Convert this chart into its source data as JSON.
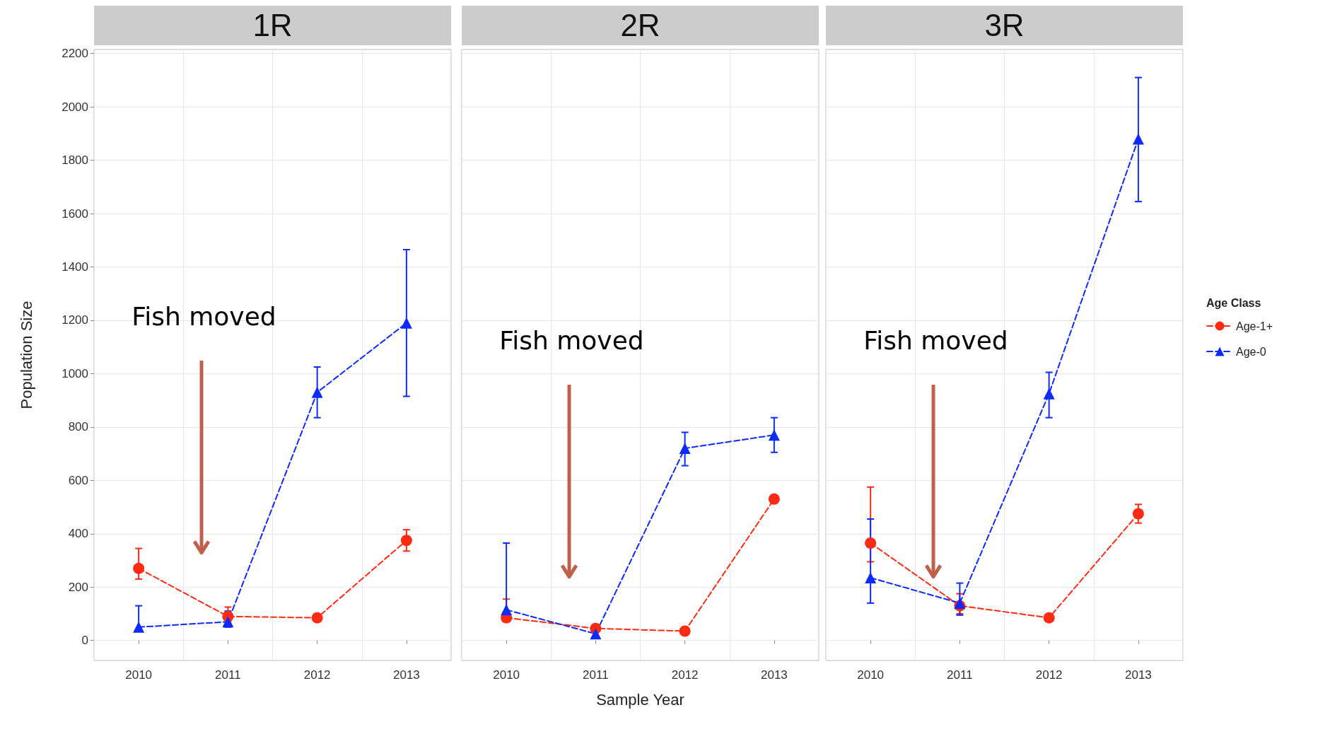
{
  "chart_data": [
    {
      "type": "line",
      "title": "1R",
      "ylabel": "Population Size",
      "categories": [
        "2010",
        "2011",
        "2012",
        "2013"
      ],
      "ylim": [
        -75,
        2215
      ],
      "yticks": [
        0,
        200,
        400,
        600,
        800,
        1000,
        1200,
        1400,
        1600,
        1800,
        2000,
        2200
      ],
      "grid": true,
      "line_style": "dashed",
      "annotations": [
        "Fish moved"
      ],
      "series": [
        {
          "color": "#ff2a12",
          "marker": "circle",
          "values": [
            270,
            90,
            85,
            375
          ],
          "errors": [
            [
              230,
              345
            ],
            [
              70,
              125
            ],
            null,
            [
              335,
              415
            ]
          ]
        },
        {
          "color": "#0d2bff",
          "marker": "triangle",
          "values": [
            50,
            70,
            930,
            1190
          ],
          "errors": [
            [
              35,
              130
            ],
            [
              50,
              110
            ],
            [
              835,
              1025
            ],
            [
              915,
              1465
            ]
          ]
        }
      ]
    },
    {
      "type": "line",
      "title": "2R",
      "xlabel": "Sample Year",
      "categories": [
        "2010",
        "2011",
        "2012",
        "2013"
      ],
      "ylim": [
        -75,
        2215
      ],
      "yticks": [
        0,
        200,
        400,
        600,
        800,
        1000,
        1200,
        1400,
        1600,
        1800,
        2000,
        2200
      ],
      "tick_labels": "x",
      "grid": true,
      "line_style": "dashed",
      "annotations": [
        "Fish moved"
      ],
      "series": [
        {
          "color": "#ff2a12",
          "marker": "circle",
          "values": [
            85,
            45,
            35,
            530
          ],
          "errors": [
            [
              70,
              155
            ],
            null,
            null,
            null
          ]
        },
        {
          "color": "#0d2bff",
          "marker": "triangle",
          "values": [
            115,
            25,
            720,
            770
          ],
          "errors": [
            [
              90,
              365
            ],
            null,
            [
              655,
              780
            ],
            [
              705,
              835
            ]
          ]
        }
      ]
    },
    {
      "type": "line",
      "title": "3R",
      "categories": [
        "2010",
        "2011",
        "2012",
        "2013"
      ],
      "ylim": [
        -75,
        2215
      ],
      "yticks": [
        0,
        200,
        400,
        600,
        800,
        1000,
        1200,
        1400,
        1600,
        1800,
        2000,
        2200
      ],
      "tick_labels": "x",
      "grid": true,
      "line_style": "dashed",
      "legend": "right",
      "legend_title": "Age Class",
      "annotations": [
        "Fish moved"
      ],
      "series": [
        {
          "name": "Age-1+",
          "color": "#ff2a12",
          "marker": "circle",
          "values": [
            365,
            130,
            85,
            475
          ],
          "errors": [
            [
              295,
              575
            ],
            [
              100,
              175
            ],
            null,
            [
              440,
              510
            ]
          ]
        },
        {
          "name": "Age-0",
          "color": "#0d2bff",
          "marker": "triangle",
          "values": [
            235,
            140,
            925,
            1880
          ],
          "errors": [
            [
              140,
              455
            ],
            [
              95,
              215
            ],
            [
              835,
              1005
            ],
            [
              1645,
              2110
            ]
          ]
        }
      ]
    }
  ]
}
